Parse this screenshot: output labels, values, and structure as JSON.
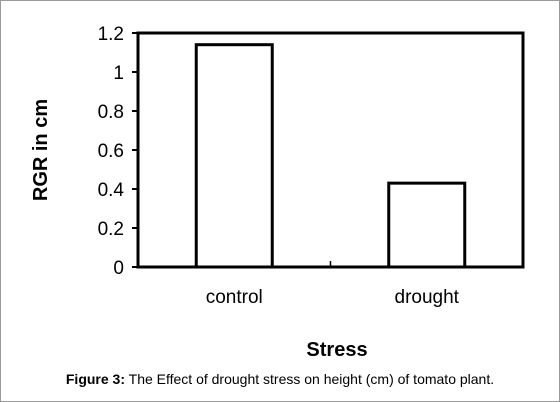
{
  "chart_data": {
    "type": "bar",
    "categories": [
      "control",
      "drought"
    ],
    "values": [
      1.14,
      0.43
    ],
    "xlabel": "Stress",
    "ylabel": "RGR in cm",
    "ylim": [
      0,
      1.2
    ],
    "yticks": [
      "0",
      "0.2",
      "0.4",
      "0.6",
      "0.8",
      "1",
      "1.2"
    ],
    "grid": false,
    "bar_fill": "#ffffff",
    "bar_stroke": "#000000"
  },
  "caption": {
    "label": "Figure 3:",
    "text": "The Effect of drought stress on height (cm) of tomato plant."
  }
}
